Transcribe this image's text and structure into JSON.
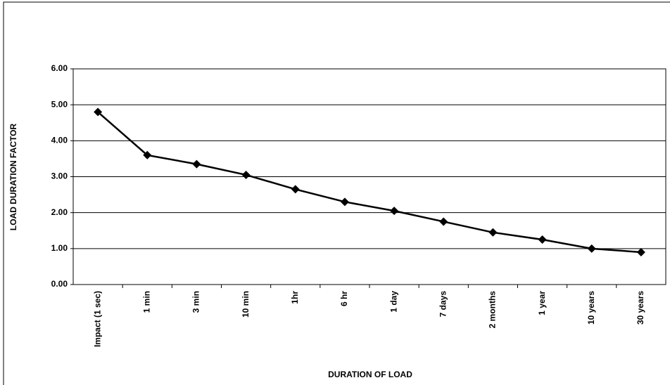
{
  "chart_data": {
    "type": "line",
    "x_label": "DURATION OF LOAD",
    "y_label": "LOAD DURATION FACTOR",
    "categories": [
      "Impact (1 sec)",
      "1 min",
      "3 min",
      "10 min",
      "1hr",
      "6 hr",
      "1 day",
      "7 days",
      "2 months",
      "1 year",
      "10 years",
      "30 years"
    ],
    "series": [
      {
        "name": "Load duration factor",
        "color": "#000000",
        "values": [
          4.8,
          3.6,
          3.35,
          3.05,
          2.65,
          2.3,
          2.05,
          1.75,
          1.45,
          1.25,
          1.0,
          0.9
        ]
      }
    ],
    "ylim": [
      0,
      6
    ],
    "yticks": [
      {
        "value": 0,
        "label": "0.00"
      },
      {
        "value": 1,
        "label": "1.00"
      },
      {
        "value": 2,
        "label": "2.00"
      },
      {
        "value": 3,
        "label": "3.00"
      },
      {
        "value": 4,
        "label": "4.00"
      },
      {
        "value": 5,
        "label": "5.00"
      },
      {
        "value": 6,
        "label": "6.00"
      }
    ],
    "grid": true
  }
}
